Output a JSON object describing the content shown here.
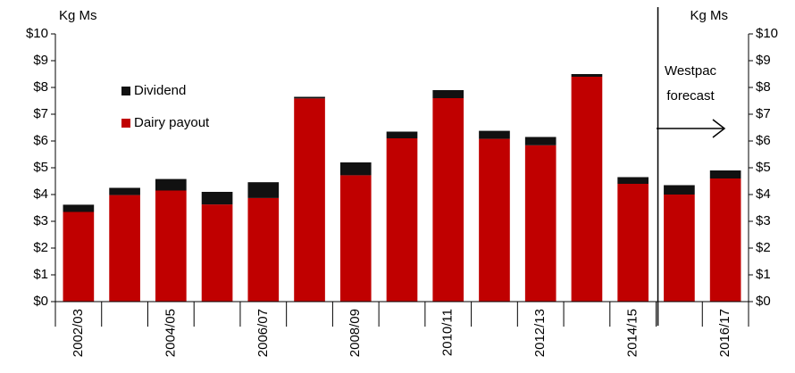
{
  "chart_data": {
    "type": "stacked_bar",
    "y_axis_label": "Kg Ms",
    "y2_axis_label": "Kg Ms",
    "categories": [
      "2002/03",
      null,
      "2004/05",
      null,
      "2006/07",
      null,
      "2008/09",
      null,
      "2010/11",
      null,
      "2012/13",
      null,
      "2014/15",
      null,
      "2016/17"
    ],
    "series": [
      {
        "name": "Dairy payout",
        "color": "#c00000",
        "values": [
          3.35,
          3.98,
          4.15,
          3.63,
          3.87,
          7.59,
          4.72,
          6.1,
          7.6,
          6.08,
          5.84,
          8.4,
          4.4,
          4.0,
          4.6
        ]
      },
      {
        "name": "Dividend",
        "color": "#111111",
        "values": [
          0.27,
          0.27,
          0.43,
          0.47,
          0.59,
          0.06,
          0.48,
          0.25,
          0.3,
          0.3,
          0.31,
          0.1,
          0.25,
          0.35,
          0.3
        ]
      }
    ],
    "ylim": [
      0,
      10
    ],
    "yticks": [
      {
        "value": 0,
        "label": "$0"
      },
      {
        "value": 1,
        "label": "$1"
      },
      {
        "value": 2,
        "label": "$2"
      },
      {
        "value": 3,
        "label": "$3"
      },
      {
        "value": 4,
        "label": "$4"
      },
      {
        "value": 5,
        "label": "$5"
      },
      {
        "value": 6,
        "label": "$6"
      },
      {
        "value": 7,
        "label": "$7"
      },
      {
        "value": 8,
        "label": "$8"
      },
      {
        "value": 9,
        "label": "$9"
      },
      {
        "value": 10,
        "label": "$10"
      }
    ],
    "y2lim": [
      0,
      10
    ],
    "y2ticks": [
      {
        "value": 0,
        "label": "$0"
      },
      {
        "value": 1,
        "label": "$1"
      },
      {
        "value": 2,
        "label": "$2"
      },
      {
        "value": 3,
        "label": "$3"
      },
      {
        "value": 4,
        "label": "$4"
      },
      {
        "value": 5,
        "label": "$5"
      },
      {
        "value": 6,
        "label": "$6"
      },
      {
        "value": 7,
        "label": "$7"
      },
      {
        "value": 8,
        "label": "$8"
      },
      {
        "value": 9,
        "label": "$9"
      },
      {
        "value": 10,
        "label": "$10"
      }
    ],
    "annotation": [
      "Westpac",
      "forecast"
    ]
  }
}
